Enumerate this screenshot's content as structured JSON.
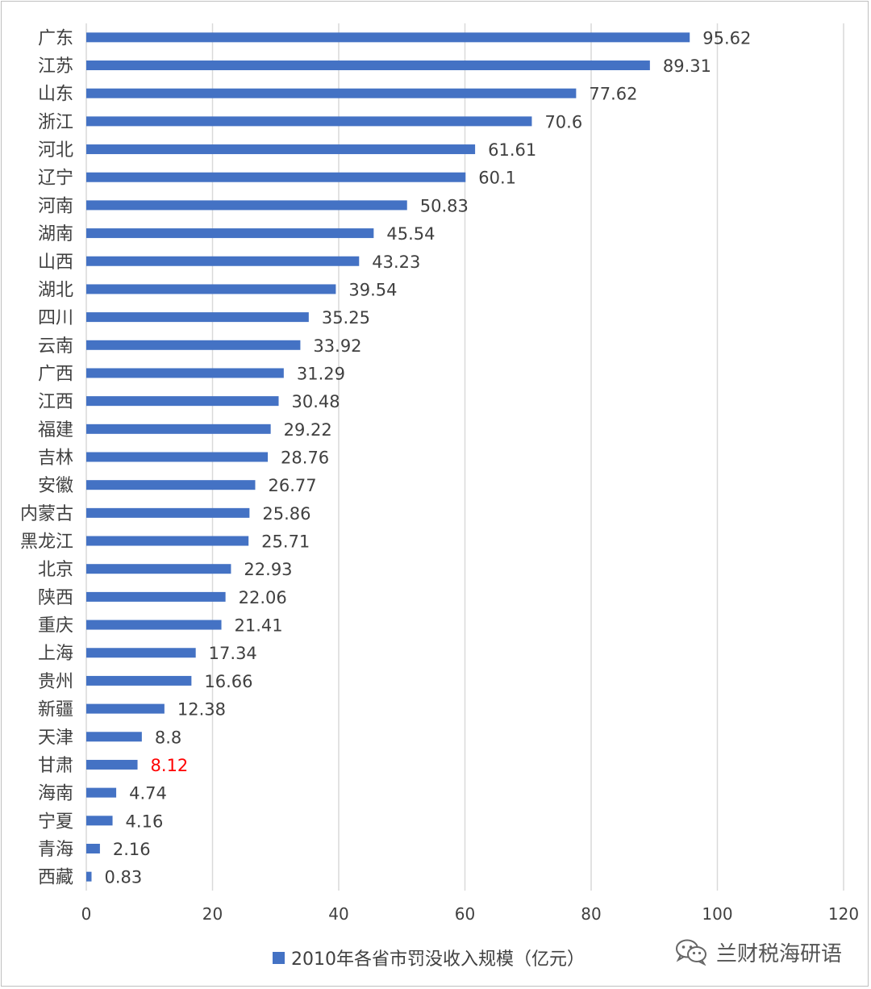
{
  "chart_data": {
    "type": "bar",
    "orientation": "horizontal",
    "categories": [
      "广东",
      "江苏",
      "山东",
      "浙江",
      "河北",
      "辽宁",
      "河南",
      "湖南",
      "山西",
      "湖北",
      "四川",
      "云南",
      "广西",
      "江西",
      "福建",
      "吉林",
      "安徽",
      "内蒙古",
      "黑龙江",
      "北京",
      "陕西",
      "重庆",
      "上海",
      "贵州",
      "新疆",
      "天津",
      "甘肃",
      "海南",
      "宁夏",
      "青海",
      "西藏"
    ],
    "value_labels": [
      "95.62",
      "89.31",
      "77.62",
      "70.6",
      "61.61",
      "60.1",
      "50.83",
      "45.54",
      "43.23",
      "39.54",
      "35.25",
      "33.92",
      "31.29",
      "30.48",
      "29.22",
      "28.76",
      "26.77",
      "25.86",
      "25.71",
      "22.93",
      "22.06",
      "21.41",
      "17.34",
      "16.66",
      "12.38",
      "8.8",
      "8.12",
      "4.74",
      "4.16",
      "2.16",
      "0.83"
    ],
    "series": [
      {
        "name": "2010年各省市罚没收入规模（亿元）",
        "values": [
          95.62,
          89.31,
          77.62,
          70.6,
          61.61,
          60.1,
          50.83,
          45.54,
          43.23,
          39.54,
          35.25,
          33.92,
          31.29,
          30.48,
          29.22,
          28.76,
          26.77,
          25.86,
          25.71,
          22.93,
          22.06,
          21.41,
          17.34,
          16.66,
          12.38,
          8.8,
          8.12,
          4.74,
          4.16,
          2.16,
          0.83
        ],
        "color": "#4472c4"
      }
    ],
    "highlight": {
      "category": "甘肃",
      "label_color": "#ff0000"
    },
    "xlim": [
      0,
      120
    ],
    "xticks": [
      "0",
      "20",
      "40",
      "60",
      "80",
      "100",
      "120"
    ],
    "grid": true,
    "legend_position": "bottom",
    "title": "",
    "xlabel": "",
    "ylabel": ""
  },
  "legend": {
    "label": "2010年各省市罚没收入规模（亿元）"
  },
  "watermark": {
    "text": "兰财税海研语",
    "icon": "wechat-icon"
  },
  "colors": {
    "bar": "#4472c4",
    "grid": "#d9d9d9",
    "text": "#404040",
    "highlight": "#ff0000"
  }
}
